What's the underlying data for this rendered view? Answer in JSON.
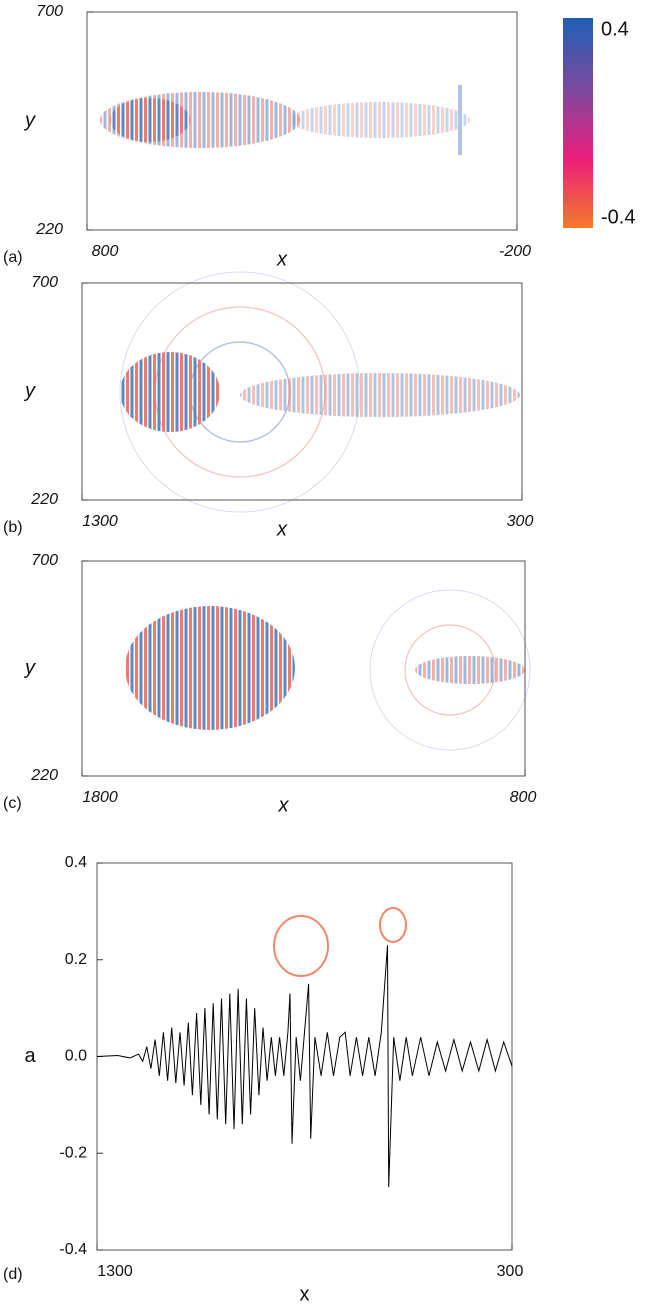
{
  "chart_data": [
    {
      "type": "heatmap",
      "panel_label": "(a)",
      "x_label": "x",
      "y_label": "y",
      "xlim": [
        800,
        -200
      ],
      "xticks": [
        800,
        -200
      ],
      "ylim": [
        220,
        700
      ],
      "yticks": [
        700,
        220
      ],
      "colorbar": {
        "range": [
          -0.4,
          0.4
        ],
        "ticks": [
          0.4,
          -0.4
        ],
        "colors": [
          "#f47a2a",
          "#ec1d7c",
          "#7a4aa0",
          "#1f5fb3"
        ]
      }
    },
    {
      "type": "heatmap",
      "panel_label": "(b)",
      "x_label": "x",
      "y_label": "y",
      "xlim": [
        1300,
        300
      ],
      "xticks": [
        1300,
        300
      ],
      "ylim": [
        220,
        700
      ],
      "yticks": [
        700,
        220
      ]
    },
    {
      "type": "heatmap",
      "panel_label": "(c)",
      "x_label": "x",
      "y_label": "y",
      "xlim": [
        1800,
        800
      ],
      "xticks": [
        1800,
        800
      ],
      "ylim": [
        220,
        700
      ],
      "yticks": [
        700,
        220
      ]
    },
    {
      "type": "line",
      "panel_label": "(d)",
      "x_label": "x",
      "y_label": "a",
      "color": "#000000",
      "xlim": [
        1300,
        300
      ],
      "xticks": [
        1300,
        300
      ],
      "ylim": [
        -0.4,
        0.4
      ],
      "yticks": [
        0.4,
        0.2,
        {
          "value": 0,
          "label": "0.0"
        },
        -0.2,
        -0.4
      ],
      "x": [
        1300,
        1250,
        1220,
        1200,
        1190,
        1180,
        1170,
        1160,
        1150,
        1140,
        1130,
        1120,
        1110,
        1100,
        1090,
        1080,
        1070,
        1060,
        1050,
        1040,
        1030,
        1020,
        1010,
        1000,
        990,
        980,
        970,
        960,
        950,
        940,
        930,
        920,
        910,
        900,
        890,
        880,
        870,
        860,
        850,
        840,
        835,
        830,
        820,
        810,
        800,
        790,
        785,
        775,
        760,
        745,
        730,
        715,
        702,
        690,
        675,
        660,
        645,
        630,
        615,
        600,
        597,
        585,
        570,
        555,
        540,
        520,
        500,
        480,
        460,
        440,
        420,
        400,
        380,
        360,
        340,
        320,
        300
      ],
      "values": [
        0,
        0.002,
        -0.003,
        0.005,
        -0.01,
        0.02,
        -0.025,
        0.035,
        -0.04,
        0.05,
        -0.05,
        0.06,
        -0.055,
        0.05,
        -0.06,
        0.07,
        -0.08,
        0.09,
        -0.1,
        0.1,
        -0.12,
        0.11,
        -0.13,
        0.12,
        -0.14,
        0.13,
        -0.15,
        0.14,
        -0.14,
        0.12,
        -0.12,
        0.1,
        -0.08,
        0.06,
        -0.05,
        0.04,
        -0.04,
        0.04,
        -0.04,
        0.05,
        0.13,
        -0.18,
        0.04,
        -0.05,
        0.05,
        0.15,
        -0.17,
        0.04,
        -0.04,
        0.05,
        -0.04,
        0.04,
        0.05,
        -0.04,
        0.04,
        -0.04,
        0.04,
        -0.04,
        0.05,
        0.23,
        -0.27,
        0.04,
        -0.05,
        0.04,
        -0.04,
        0.04,
        -0.04,
        0.03,
        -0.03,
        0.035,
        -0.03,
        0.03,
        -0.03,
        0.035,
        -0.03,
        0.03,
        -0.02
      ]
    }
  ]
}
